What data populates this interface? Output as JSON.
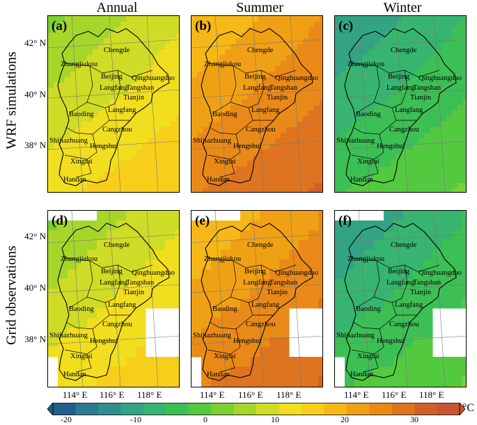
{
  "column_titles": [
    "Annual",
    "Summer",
    "Winter"
  ],
  "row_titles": [
    "WRF simulations",
    "Grid observations"
  ],
  "panel_labels": [
    "(a)",
    "(b)",
    "(c)",
    "(d)",
    "(e)",
    "(f)"
  ],
  "cities": [
    "Chengde",
    "Zhangjiakou",
    "Beijing",
    "Qinghuangdao",
    "Langfang",
    "Tangshan",
    "Tianjin",
    "Baoding",
    "Cangzhou",
    "Shijiazhuang",
    "Hengshui",
    "Xingtai",
    "Handan"
  ],
  "lat_ticks": [
    "42° N",
    "40° N",
    "38° N"
  ],
  "lon_ticks": [
    "114° E",
    "116° E",
    "118° E"
  ],
  "colorbar": {
    "min": -25,
    "max": 35,
    "ticks": [
      "-20",
      "-10",
      "0",
      "10",
      "20",
      "30"
    ],
    "tick_values": [
      -20,
      -10,
      0,
      10,
      20,
      30
    ],
    "unit": "°C",
    "colors": [
      "#1f5f8b",
      "#2a7a90",
      "#2f8f8c",
      "#33a483",
      "#37b46f",
      "#3cbf55",
      "#53c93f",
      "#7bd032",
      "#a6d62a",
      "#cfdc25",
      "#f0de1f",
      "#f7cf1a",
      "#f5b816",
      "#f0a014",
      "#e98a18",
      "#de7420",
      "#d06028",
      "#c75432"
    ]
  },
  "panels": [
    {
      "label": "(a)",
      "mean_temp": 10
    },
    {
      "label": "(b)",
      "mean_temp": 24
    },
    {
      "label": "(c)",
      "mean_temp": -6
    },
    {
      "label": "(d)",
      "mean_temp": 10
    },
    {
      "label": "(e)",
      "mean_temp": 24
    },
    {
      "label": "(f)",
      "mean_temp": -6
    }
  ]
}
